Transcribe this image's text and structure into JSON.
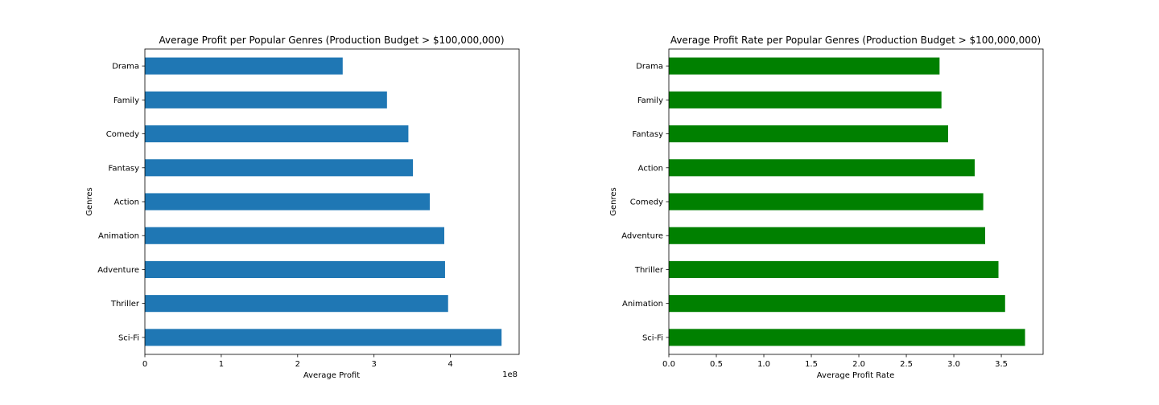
{
  "chart_data": [
    {
      "type": "bar",
      "orientation": "horizontal",
      "title": "Average Profit per Popular Genres (Production Budget > $100,000,000)",
      "xlabel": "Average Profit",
      "ylabel": "Genres",
      "offset_label": "1e8",
      "color": "#1f77b4",
      "xlim": [
        0,
        4.9
      ],
      "xticks": [
        0,
        1,
        2,
        3,
        4
      ],
      "xtick_labels": [
        "0",
        "1",
        "2",
        "3",
        "4"
      ],
      "categories": [
        "Drama",
        "Family",
        "Comedy",
        "Fantasy",
        "Action",
        "Animation",
        "Adventure",
        "Thriller",
        "Sci-Fi"
      ],
      "values": [
        2.59,
        3.17,
        3.45,
        3.51,
        3.73,
        3.92,
        3.93,
        3.97,
        4.67
      ],
      "grid": false,
      "legend": "none"
    },
    {
      "type": "bar",
      "orientation": "horizontal",
      "title": "Average Profit Rate per Popular Genres (Production Budget > $100,000,000)",
      "xlabel": "Average Profit Rate",
      "ylabel": "Genres",
      "color": "#008000",
      "xlim": [
        0,
        3.94
      ],
      "xticks": [
        0,
        0.5,
        1,
        1.5,
        2,
        2.5,
        3,
        3.5
      ],
      "xtick_labels": [
        "0.0",
        "0.5",
        "1.0",
        "1.5",
        "2.0",
        "2.5",
        "3.0",
        "3.5"
      ],
      "categories": [
        "Drama",
        "Family",
        "Fantasy",
        "Action",
        "Comedy",
        "Adventure",
        "Thriller",
        "Animation",
        "Sci-Fi"
      ],
      "values": [
        2.85,
        2.87,
        2.94,
        3.22,
        3.31,
        3.33,
        3.47,
        3.54,
        3.75
      ],
      "grid": false,
      "legend": "none"
    }
  ]
}
